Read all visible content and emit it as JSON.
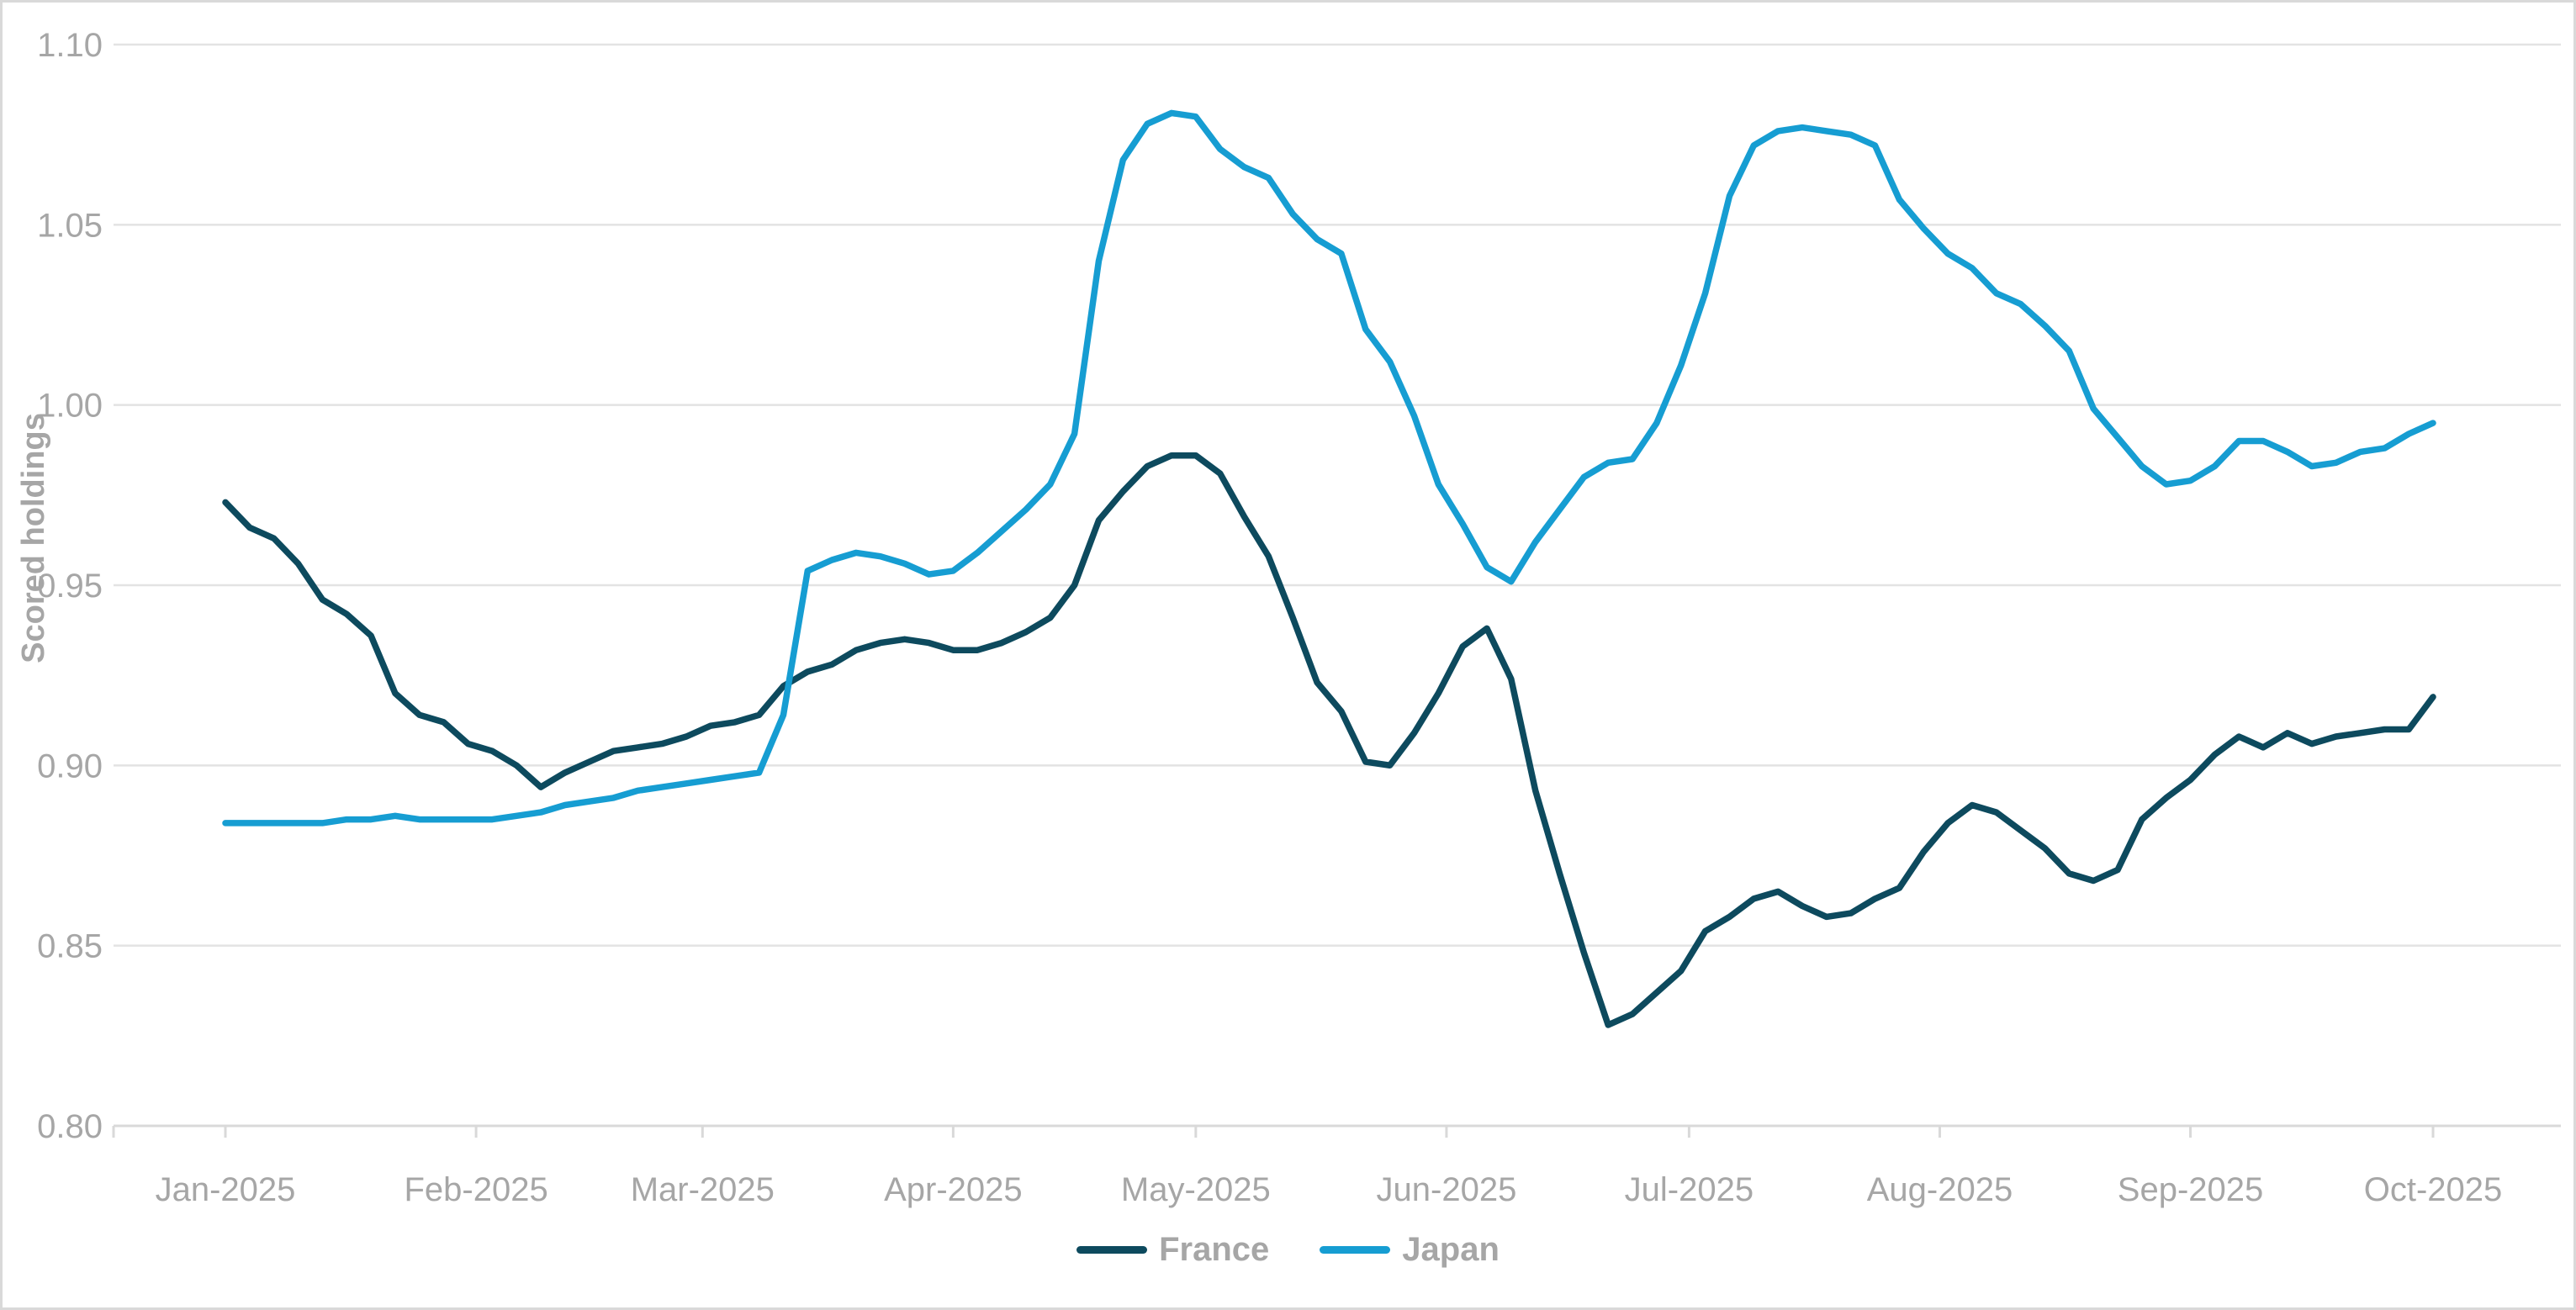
{
  "page": {
    "background": "#ffffff",
    "frame_color": "#d9d9d9"
  },
  "styles": {
    "grid_color": "#e3e3e3",
    "axis_color": "#d9d9d9",
    "tick_color": "#d9d9d9",
    "label_color": "#a6a6a6"
  },
  "chart_data": {
    "type": "line",
    "title": "",
    "xlabel": "",
    "ylabel": "Scored holdings",
    "ylim": [
      0.8,
      1.1
    ],
    "yticks": [
      "0.80",
      "0.85",
      "0.90",
      "0.95",
      "1.00",
      "1.05",
      "1.10"
    ],
    "grid": "horizontal-on",
    "legend_position": "bottom-center",
    "x_unit": "days-from-2025-01-01",
    "sampling": {
      "start_day": 0,
      "step_days": 3
    },
    "month_ticks": [
      {
        "label": "Jan-2025",
        "day": 0
      },
      {
        "label": "Feb-2025",
        "day": 31
      },
      {
        "label": "Mar-2025",
        "day": 59
      },
      {
        "label": "Apr-2025",
        "day": 90
      },
      {
        "label": "May-2025",
        "day": 120
      },
      {
        "label": "Jun-2025",
        "day": 151
      },
      {
        "label": "Jul-2025",
        "day": 181
      },
      {
        "label": "Aug-2025",
        "day": 212
      },
      {
        "label": "Sep-2025",
        "day": 243
      },
      {
        "label": "Oct-2025",
        "day": 273
      }
    ],
    "series": [
      {
        "name": "France",
        "color": "#0d4a5e",
        "values": [
          0.973,
          0.966,
          0.963,
          0.956,
          0.946,
          0.942,
          0.936,
          0.92,
          0.914,
          0.912,
          0.906,
          0.904,
          0.9,
          0.894,
          0.898,
          0.901,
          0.904,
          0.905,
          0.906,
          0.908,
          0.911,
          0.912,
          0.914,
          0.922,
          0.926,
          0.928,
          0.932,
          0.934,
          0.935,
          0.934,
          0.932,
          0.932,
          0.934,
          0.937,
          0.941,
          0.95,
          0.968,
          0.976,
          0.983,
          0.986,
          0.986,
          0.981,
          0.969,
          0.958,
          0.941,
          0.923,
          0.915,
          0.901,
          0.9,
          0.909,
          0.92,
          0.933,
          0.938,
          0.924,
          0.893,
          0.87,
          0.848,
          0.828,
          0.831,
          0.837,
          0.843,
          0.854,
          0.858,
          0.863,
          0.865,
          0.861,
          0.858,
          0.859,
          0.863,
          0.866,
          0.876,
          0.884,
          0.889,
          0.887,
          0.882,
          0.877,
          0.87,
          0.868,
          0.871,
          0.885,
          0.891,
          0.896,
          0.903,
          0.908,
          0.905,
          0.909,
          0.906,
          0.908,
          0.909,
          0.91,
          0.91,
          0.919
        ]
      },
      {
        "name": "Japan",
        "color": "#169dd2",
        "values": [
          0.884,
          0.884,
          0.884,
          0.884,
          0.884,
          0.885,
          0.885,
          0.886,
          0.885,
          0.885,
          0.885,
          0.885,
          0.886,
          0.887,
          0.889,
          0.89,
          0.891,
          0.893,
          0.894,
          0.895,
          0.896,
          0.897,
          0.898,
          0.914,
          0.954,
          0.957,
          0.959,
          0.958,
          0.956,
          0.953,
          0.954,
          0.959,
          0.965,
          0.971,
          0.978,
          0.992,
          1.04,
          1.068,
          1.078,
          1.081,
          1.08,
          1.071,
          1.066,
          1.063,
          1.053,
          1.046,
          1.042,
          1.021,
          1.012,
          0.997,
          0.978,
          0.967,
          0.955,
          0.951,
          0.962,
          0.971,
          0.98,
          0.984,
          0.985,
          0.995,
          1.011,
          1.031,
          1.058,
          1.072,
          1.076,
          1.077,
          1.076,
          1.075,
          1.072,
          1.057,
          1.049,
          1.042,
          1.038,
          1.031,
          1.028,
          1.022,
          1.015,
          0.999,
          0.991,
          0.983,
          0.978,
          0.979,
          0.983,
          0.99,
          0.99,
          0.987,
          0.983,
          0.984,
          0.987,
          0.988,
          0.992,
          0.995
        ]
      }
    ]
  }
}
